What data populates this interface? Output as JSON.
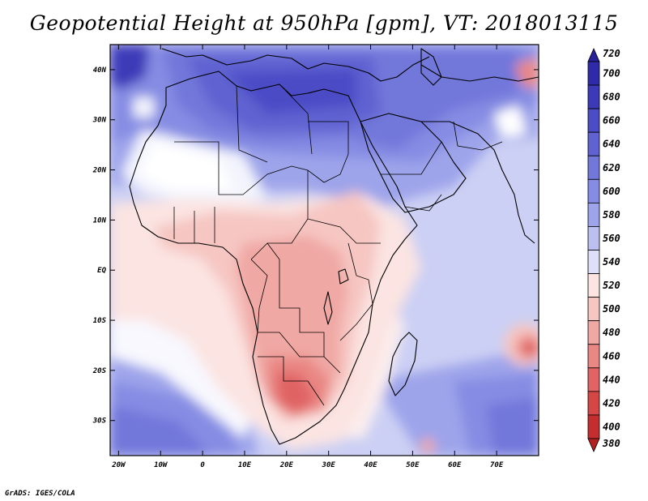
{
  "title": "Geopotential Height at 950hPa [gpm], VT: 2018013115",
  "credit": "GrADS: IGES/COLA",
  "map": {
    "variable": "Geopotential Height",
    "level": "950hPa",
    "units": "gpm",
    "valid_time": "2018013115",
    "lon_range": [
      -22,
      80
    ],
    "lat_range": [
      -37,
      45
    ],
    "lat_ticks": [
      {
        "value": 40,
        "label": "40N"
      },
      {
        "value": 30,
        "label": "30N"
      },
      {
        "value": 20,
        "label": "20N"
      },
      {
        "value": 10,
        "label": "10N"
      },
      {
        "value": 0,
        "label": "EQ"
      },
      {
        "value": -10,
        "label": "10S"
      },
      {
        "value": -20,
        "label": "20S"
      },
      {
        "value": -30,
        "label": "30S"
      }
    ],
    "lon_ticks": [
      {
        "value": -20,
        "label": "20W"
      },
      {
        "value": -10,
        "label": "10W"
      },
      {
        "value": 0,
        "label": "0"
      },
      {
        "value": 10,
        "label": "10E"
      },
      {
        "value": 20,
        "label": "20E"
      },
      {
        "value": 30,
        "label": "30E"
      },
      {
        "value": 40,
        "label": "40E"
      },
      {
        "value": 50,
        "label": "50E"
      },
      {
        "value": 60,
        "label": "60E"
      },
      {
        "value": 70,
        "label": "70E"
      }
    ]
  },
  "colorbar": {
    "levels": [
      "720",
      "700",
      "680",
      "660",
      "640",
      "620",
      "600",
      "580",
      "560",
      "540",
      "520",
      "500",
      "480",
      "460",
      "440",
      "420",
      "400",
      "380"
    ],
    "colors": [
      "#27219a",
      "#2f2ba8",
      "#3c3ab8",
      "#4c4cc6",
      "#5f62d0",
      "#7277da",
      "#868ce3",
      "#9ea4ea",
      "#bcc0f1",
      "#dde0f8",
      "#fbe4e2",
      "#f6c6c2",
      "#f0a8a4",
      "#e98784",
      "#e06464",
      "#d54646",
      "#c52e2e",
      "#b22020"
    ]
  }
}
